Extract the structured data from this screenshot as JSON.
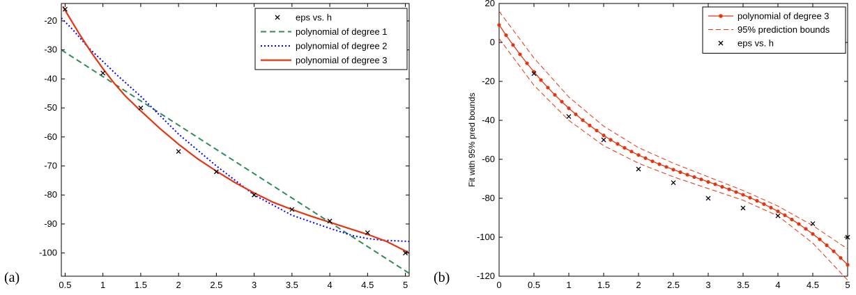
{
  "panel_labels": [
    "(a)",
    "(b)"
  ],
  "chart_data": [
    {
      "type": "line",
      "panel": "(a)",
      "xlim": [
        0.45,
        5.05
      ],
      "ylim": [
        -108,
        -14
      ],
      "xticks": [
        0.5,
        1,
        1.5,
        2,
        2.5,
        3,
        3.5,
        4,
        4.5,
        5
      ],
      "xtick_labels": [
        "0.5",
        "1",
        "1.5",
        "2",
        "2.5",
        "3",
        "3.5",
        "4",
        "4.5",
        "5"
      ],
      "yticks": [
        -20,
        -30,
        -40,
        -50,
        -60,
        -70,
        -80,
        -90,
        -100
      ],
      "ytick_labels": [
        "-20",
        "-30",
        "-40",
        "-50",
        "-60",
        "-70",
        "-80",
        "-90",
        "-100"
      ],
      "grid": false,
      "legend_position": "top-right",
      "points": {
        "name": "eps vs. h",
        "x": [
          0.5,
          1,
          1.5,
          2,
          2.5,
          3,
          3.5,
          4,
          4.5,
          5
        ],
        "y": [
          -16,
          -38,
          -50,
          -65,
          -72,
          -80,
          -85,
          -89,
          -93,
          -100
        ],
        "color": "#000000",
        "marker": "x"
      },
      "series": [
        {
          "name": "polynomial of degree 1",
          "x": [
            0.45,
            5.05
          ],
          "y": [
            -30,
            -107
          ],
          "color": "#2e8b57",
          "style": "dashed"
        },
        {
          "name": "polynomial of degree 2",
          "x": [
            0.45,
            0.6,
            0.8,
            1.0,
            1.2,
            1.5,
            2.0,
            2.5,
            3.0,
            3.5,
            4.0,
            4.3,
            4.5,
            4.7,
            5.05
          ],
          "y": [
            -19,
            -23,
            -29,
            -34,
            -39,
            -46,
            -59,
            -70,
            -80,
            -87,
            -91.5,
            -94,
            -95,
            -95.6,
            -96
          ],
          "color": "#0000ff",
          "style": "dotted"
        },
        {
          "name": "polynomial of degree 3",
          "x": [
            0.47,
            0.55,
            0.7,
            0.85,
            1.0,
            1.15,
            1.3,
            1.5,
            1.75,
            2.0,
            2.25,
            2.5,
            2.75,
            3.0,
            3.25,
            3.5,
            3.75,
            4.0,
            4.25,
            4.5,
            4.75,
            5.0,
            5.05
          ],
          "y": [
            -15,
            -18.5,
            -25,
            -31,
            -36.5,
            -41.5,
            -46,
            -51,
            -57,
            -62.5,
            -67.5,
            -71.8,
            -75.8,
            -79.3,
            -82.5,
            -85,
            -87.3,
            -89.4,
            -91.5,
            -93.6,
            -96,
            -99.3,
            -100
          ],
          "color": "#e8330f",
          "style": "solid"
        }
      ]
    },
    {
      "type": "line",
      "panel": "(b)",
      "xlim": [
        0,
        5
      ],
      "ylim": [
        -120,
        20
      ],
      "xticks": [
        0,
        0.5,
        1,
        1.5,
        2,
        2.5,
        3,
        3.5,
        4,
        4.5,
        5
      ],
      "xtick_labels": [
        "0",
        "0.5",
        "1",
        "1.5",
        "2",
        "2.5",
        "3",
        "3.5",
        "4",
        "4.5",
        "5"
      ],
      "yticks": [
        20,
        0,
        -20,
        -40,
        -60,
        -80,
        -100,
        -120
      ],
      "ytick_labels": [
        "20",
        "0",
        "-20",
        "-40",
        "-60",
        "-80",
        "-100",
        "-120"
      ],
      "ylabel": "Fit with 95% pred bounds",
      "grid": false,
      "legend_position": "top-right",
      "fit": {
        "name": "polynomial of degree 3",
        "color": "#e8330f",
        "x": [
          0,
          0.1,
          0.2,
          0.3,
          0.4,
          0.5,
          0.6,
          0.7,
          0.8,
          0.9,
          1.0,
          1.1,
          1.2,
          1.3,
          1.4,
          1.5,
          1.6,
          1.7,
          1.8,
          1.9,
          2.0,
          2.1,
          2.2,
          2.3,
          2.4,
          2.5,
          2.6,
          2.7,
          2.8,
          2.9,
          3.0,
          3.1,
          3.2,
          3.3,
          3.4,
          3.5,
          3.6,
          3.7,
          3.8,
          3.9,
          4.0,
          4.1,
          4.2,
          4.3,
          4.4,
          4.5,
          4.6,
          4.7,
          4.8,
          4.9,
          5.0
        ],
        "y": [
          9,
          3.7,
          -1.3,
          -6.1,
          -10.7,
          -15.1,
          -19.3,
          -23.2,
          -26.9,
          -30.4,
          -33.8,
          -36.9,
          -39.9,
          -42.6,
          -45.2,
          -47.7,
          -50,
          -52.1,
          -54.1,
          -56,
          -57.8,
          -59.4,
          -61,
          -62.5,
          -63.9,
          -65.3,
          -66.6,
          -67.9,
          -69.1,
          -70.3,
          -71.6,
          -72.8,
          -74.1,
          -75.4,
          -76.8,
          -78.2,
          -79.7,
          -81.3,
          -83,
          -84.8,
          -86.7,
          -88.7,
          -90.9,
          -93.2,
          -95.7,
          -98.3,
          -101.1,
          -104.1,
          -107.2,
          -110.6,
          -114.1
        ]
      },
      "bounds": {
        "name": "95% prediction bounds",
        "color": "#e8330f",
        "upper": {
          "x": [
            0,
            0.5,
            1.0,
            1.5,
            2.0,
            2.5,
            3.0,
            3.5,
            4.0,
            4.5,
            5.0
          ],
          "y": [
            16,
            -8,
            -28,
            -43,
            -54,
            -62,
            -69,
            -76,
            -84,
            -94,
            -106
          ]
        },
        "lower": {
          "x": [
            0,
            0.5,
            1.0,
            1.5,
            2.0,
            2.5,
            3.0,
            3.5,
            4.0,
            4.5,
            5.0
          ],
          "y": [
            2,
            -22,
            -40,
            -53,
            -62,
            -69,
            -75,
            -81,
            -89,
            -103,
            -122
          ]
        }
      },
      "points": {
        "name": "eps vs. h",
        "x": [
          0.5,
          1,
          1.5,
          2,
          2.5,
          3,
          3.5,
          4,
          4.5,
          5
        ],
        "y": [
          -16,
          -38,
          -50,
          -65,
          -72,
          -80,
          -85,
          -89,
          -93,
          -100
        ],
        "color": "#000000",
        "marker": "x"
      }
    }
  ]
}
